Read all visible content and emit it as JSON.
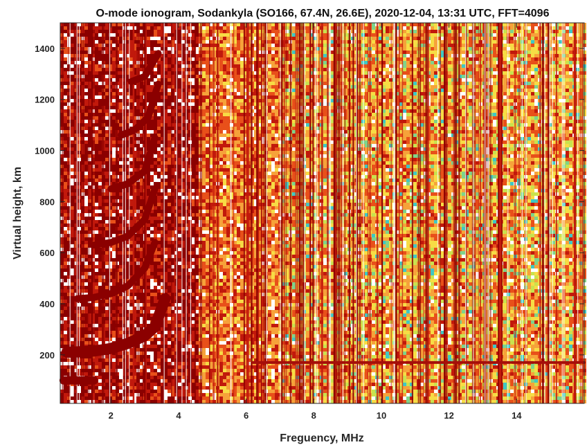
{
  "chart_data": {
    "type": "heatmap",
    "title": "O-mode ionogram, Sodankyla (SO166, 67.4N, 26.6E), 2020-12-04, 13:31 UTC, FFT=4096",
    "xlabel": "Freguency, MHz",
    "ylabel": "Virtual height, km",
    "xlim": [
      0.5,
      16.0
    ],
    "ylim": [
      10,
      1500
    ],
    "x_ticks": [
      2,
      4,
      6,
      8,
      10,
      12,
      14
    ],
    "y_ticks": [
      200,
      400,
      600,
      800,
      1000,
      1200,
      1400
    ],
    "grid": false,
    "legend": "none",
    "colormap": [
      "#8b0000",
      "#c1190c",
      "#e8501a",
      "#f6a23a",
      "#f7dc45",
      "#c9e24e",
      "#7fd38a",
      "#3fc7c4",
      "#ffffff"
    ],
    "traces": [
      {
        "name": "E-layer echo",
        "x": [
          0.6,
          1.5
        ],
        "height": 100
      },
      {
        "name": "F-layer trace",
        "x": [
          0.7,
          1.5,
          2.0,
          2.5,
          3.0,
          3.3,
          3.6
        ],
        "height": [
          210,
          215,
          225,
          245,
          275,
          310,
          420
        ]
      },
      {
        "name": "Multiple hop 2",
        "x": [
          1.0,
          1.5,
          2.0,
          2.5,
          3.0,
          3.3
        ],
        "height": [
          420,
          425,
          440,
          470,
          540,
          640
        ]
      },
      {
        "name": "Multiple hop 3",
        "x": [
          1.5,
          2.0,
          2.5,
          3.0,
          3.3
        ],
        "height": [
          630,
          640,
          665,
          730,
          850
        ]
      },
      {
        "name": "Multiple hop 4",
        "x": [
          2.0,
          2.5,
          3.0,
          3.3
        ],
        "height": [
          850,
          870,
          920,
          1050
        ]
      },
      {
        "name": "Multiple hop 5",
        "x": [
          2.3,
          2.7,
          3.1,
          3.4
        ],
        "height": [
          1060,
          1080,
          1130,
          1260
        ]
      },
      {
        "name": "Multiple hop 6",
        "x": [
          2.6,
          3.0,
          3.4
        ],
        "height": [
          1270,
          1290,
          1380
        ]
      },
      {
        "name": "Sporadic E line",
        "x": [
          6.2,
          16.0
        ],
        "height": 170
      }
    ]
  }
}
